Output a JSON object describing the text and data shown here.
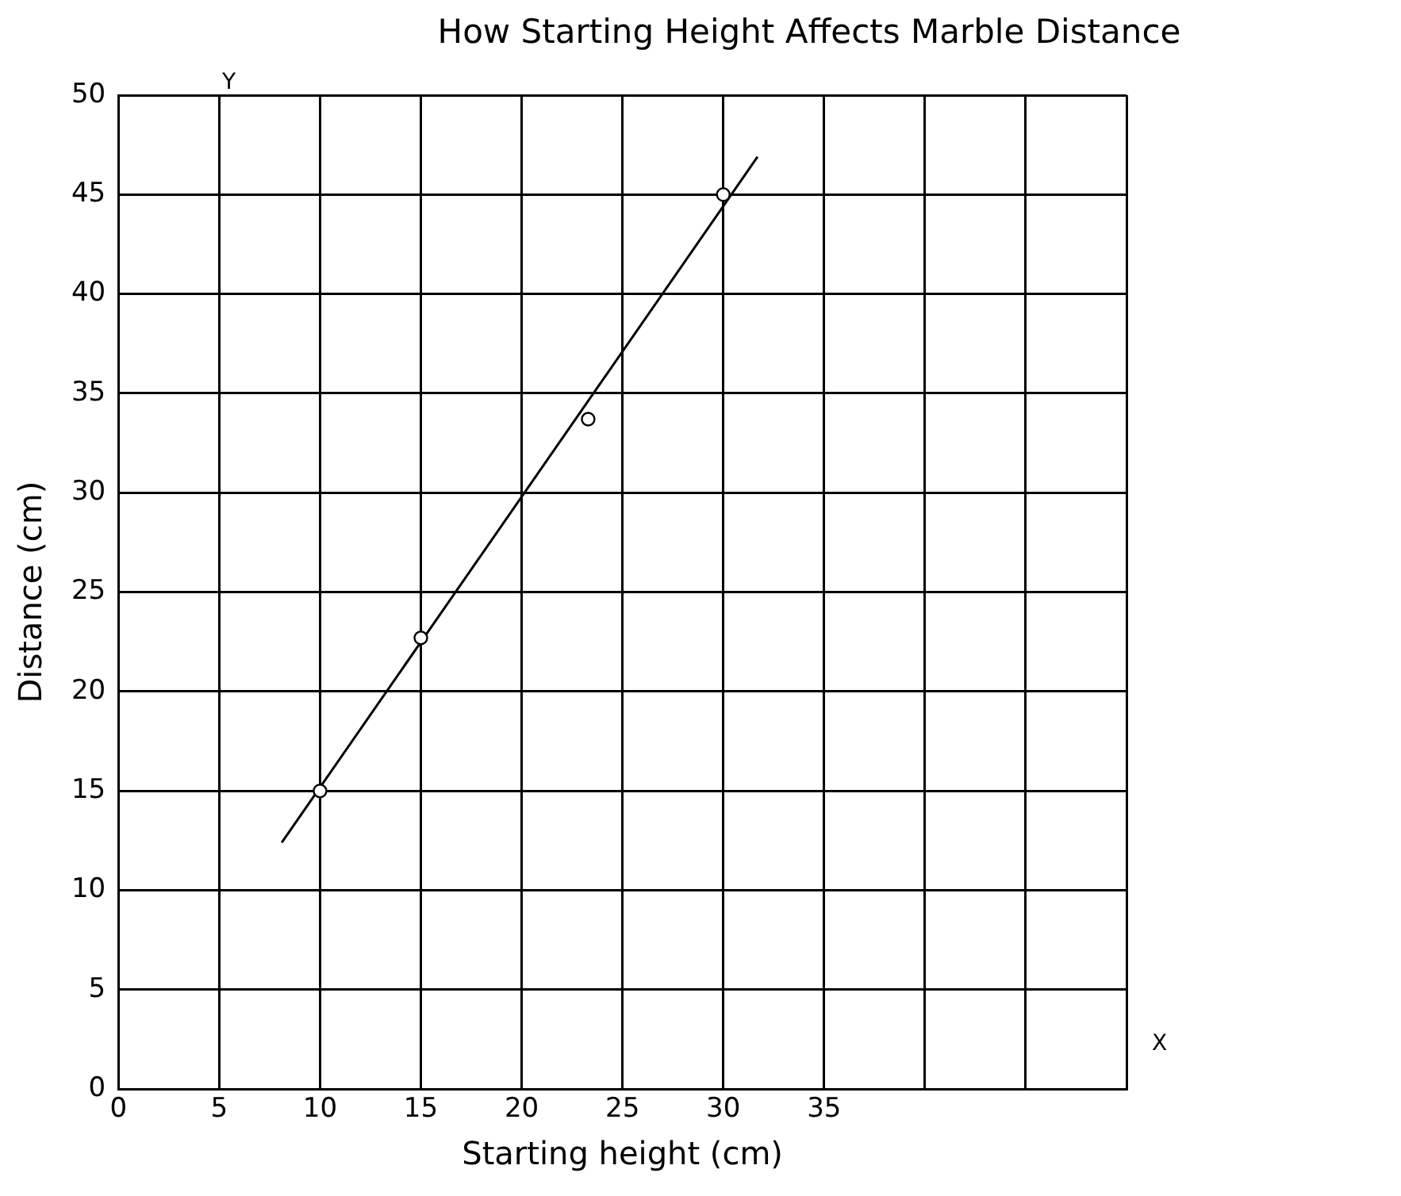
{
  "chart_data": {
    "type": "scatter",
    "title": "How Starting Height Affects Marble Distance",
    "xlabel": "Starting height (cm)",
    "ylabel": "Distance (cm)",
    "series": [
      {
        "color": "#000000",
        "marker": "circle",
        "x": [
          10,
          15,
          23.3,
          30
        ],
        "values": [
          15,
          22.7,
          33.7,
          45
        ]
      },
      {
        "type": "line",
        "color": "#000000",
        "marker": "none",
        "x": [
          8.1,
          31.7
        ],
        "values": [
          12.4,
          46.9
        ]
      }
    ],
    "xlim": [
      0,
      50
    ],
    "xticks": [
      0,
      5,
      10,
      15,
      20,
      25,
      30,
      35,
      {
        "value": 40,
        "label": null
      },
      {
        "value": 45,
        "label": null
      },
      {
        "value": 50,
        "label": null
      }
    ],
    "ylim": [
      0,
      50
    ],
    "yticks": [
      0,
      5,
      10,
      15,
      20,
      25,
      30,
      35,
      40,
      45,
      50
    ],
    "grid": true,
    "legend": false,
    "annotations": [
      "Y",
      "X"
    ]
  }
}
